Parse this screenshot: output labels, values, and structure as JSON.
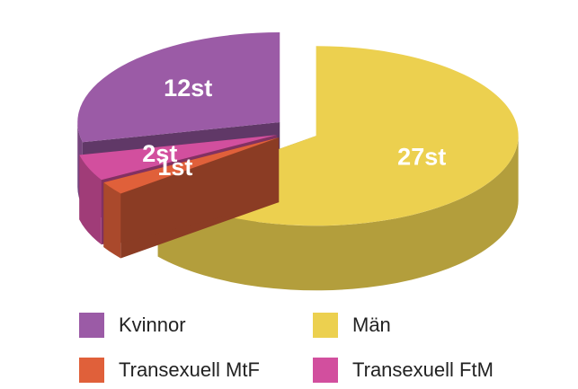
{
  "chart_data": {
    "type": "pie",
    "categories": [
      "Män",
      "Transexuell MtF",
      "Transexuell FtM",
      "Kvinnor"
    ],
    "values": [
      27,
      1,
      2,
      12
    ],
    "value_labels": [
      "27st",
      "1st",
      "2st",
      "12st"
    ],
    "colors": [
      "#ecd04f",
      "#e0603a",
      "#d24f9e",
      "#9b5ba6"
    ],
    "legend_order": [
      3,
      0,
      1,
      2
    ]
  }
}
